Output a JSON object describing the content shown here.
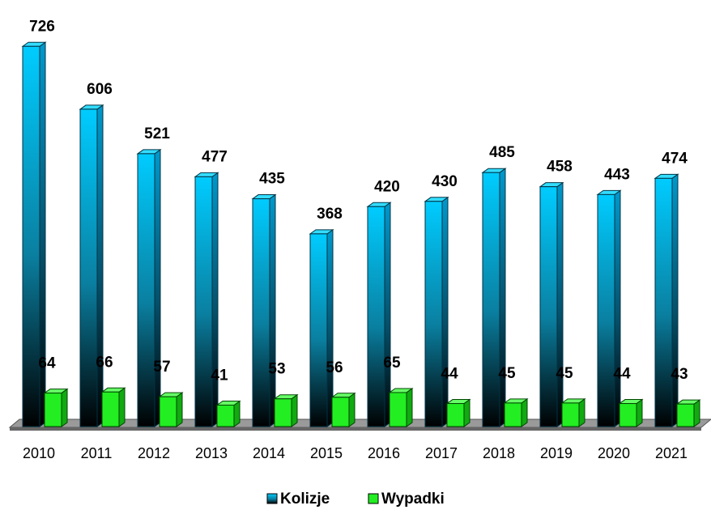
{
  "chart_data": {
    "type": "bar3d",
    "categories": [
      "2010",
      "2011",
      "2012",
      "2013",
      "2014",
      "2015",
      "2016",
      "2017",
      "2018",
      "2019",
      "2020",
      "2021"
    ],
    "series": [
      {
        "name": "Kolizje",
        "color": "#00c8f8",
        "values": [
          726,
          606,
          521,
          477,
          435,
          368,
          420,
          430,
          485,
          458,
          443,
          474
        ]
      },
      {
        "name": "Wypadki",
        "color": "#22ee22",
        "values": [
          64,
          66,
          57,
          41,
          53,
          56,
          65,
          44,
          45,
          45,
          44,
          43
        ]
      }
    ],
    "legend": "bottom"
  }
}
